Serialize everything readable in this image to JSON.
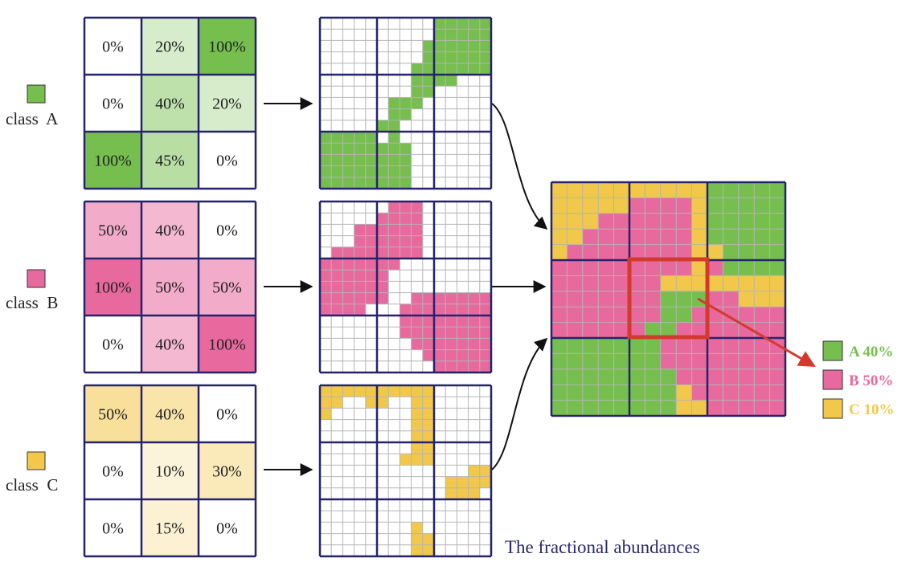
{
  "colors": {
    "grid_border": "#25236e",
    "fine_grid": "#b4b4b4",
    "arrow": "#111111",
    "highlight": "#d23a2e",
    "caption": "#2a2a6e"
  },
  "classes": [
    {
      "id": "a",
      "label": "class  A",
      "swatch_color": "#76bf4e",
      "fractions": [
        [
          "0%",
          "20%",
          "100%"
        ],
        [
          "0%",
          "40%",
          "20%"
        ],
        [
          "100%",
          "45%",
          "0%"
        ]
      ],
      "values": [
        [
          0,
          20,
          100
        ],
        [
          0,
          40,
          20
        ],
        [
          100,
          45,
          0
        ]
      ]
    },
    {
      "id": "b",
      "label": "class  B",
      "swatch_color": "#e8699d",
      "fractions": [
        [
          "50%",
          "40%",
          "0%"
        ],
        [
          "100%",
          "50%",
          "50%"
        ],
        [
          "0%",
          "40%",
          "100%"
        ]
      ],
      "values": [
        [
          50,
          40,
          0
        ],
        [
          100,
          50,
          50
        ],
        [
          0,
          40,
          100
        ]
      ]
    },
    {
      "id": "c",
      "label": "class  C",
      "swatch_color": "#f2c84b",
      "fractions": [
        [
          "50%",
          "40%",
          "0%"
        ],
        [
          "0%",
          "10%",
          "30%"
        ],
        [
          "0%",
          "15%",
          "0%"
        ]
      ],
      "values": [
        [
          50,
          40,
          0
        ],
        [
          0,
          10,
          30
        ],
        [
          0,
          15,
          0
        ]
      ]
    }
  ],
  "legend": [
    {
      "label": "A 40%",
      "color": "#76bf4e"
    },
    {
      "label": "B 50%",
      "color": "#e8699d"
    },
    {
      "label": "C 10%",
      "color": "#f2c84b"
    }
  ],
  "caption": "The fractional abundances"
}
